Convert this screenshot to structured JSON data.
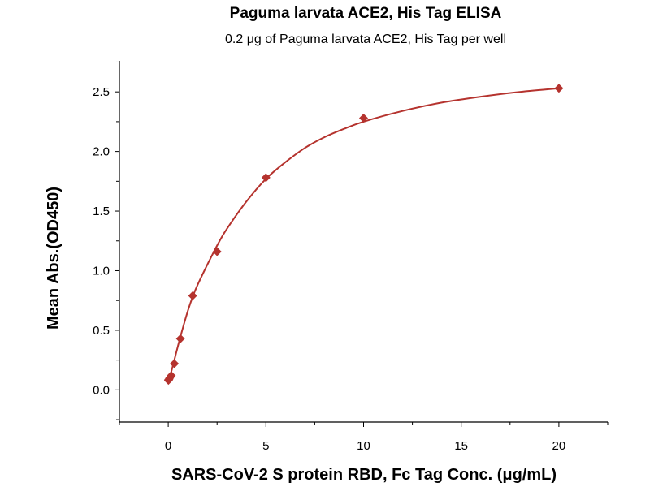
{
  "chart_data": {
    "type": "scatter",
    "title": "Paguma larvata ACE2, His Tag ELISA",
    "subtitle": "0.2 μg of Paguma larvata ACE2, His Tag per well",
    "xlabel": "SARS-CoV-2 S protein RBD, Fc Tag Conc. (μg/mL)",
    "ylabel": "Mean Abs.(OD450)",
    "xlim": [
      -2.5,
      22.5
    ],
    "ylim": [
      -0.27,
      2.76
    ],
    "x_ticks": [
      0,
      5,
      10,
      15,
      20
    ],
    "x_tick_labels": [
      "0",
      "5",
      "10",
      "15",
      "20"
    ],
    "y_ticks": [
      0.0,
      0.5,
      1.0,
      1.5,
      2.0,
      2.5
    ],
    "y_tick_labels": [
      "0.0",
      "0.5",
      "1.0",
      "1.5",
      "2.0",
      "2.5"
    ],
    "grid": false,
    "series": [
      {
        "marker": "diamond",
        "color": "#b5332e",
        "x": [
          0.0098,
          0.0195,
          0.039,
          0.078,
          0.156,
          0.3125,
          0.625,
          1.25,
          2.5,
          5,
          10,
          20
        ],
        "y": [
          0.08,
          0.085,
          0.09,
          0.1,
          0.12,
          0.22,
          0.43,
          0.79,
          1.16,
          1.78,
          2.28,
          2.53
        ]
      }
    ],
    "fit_curve": {
      "type": "line",
      "color": "#b5332e",
      "x": [
        0.0,
        0.1,
        0.25,
        0.5,
        0.75,
        1.0,
        1.25,
        1.5,
        2.0,
        2.5,
        3.0,
        4.0,
        5.0,
        6.0,
        7.0,
        8.0,
        9.0,
        10.0,
        12.0,
        14.0,
        16.0,
        18.0,
        20.0
      ],
      "y": [
        0.08,
        0.12,
        0.21,
        0.37,
        0.52,
        0.66,
        0.78,
        0.88,
        1.05,
        1.21,
        1.35,
        1.58,
        1.77,
        1.91,
        2.03,
        2.12,
        2.19,
        2.25,
        2.34,
        2.41,
        2.46,
        2.5,
        2.53
      ]
    }
  }
}
